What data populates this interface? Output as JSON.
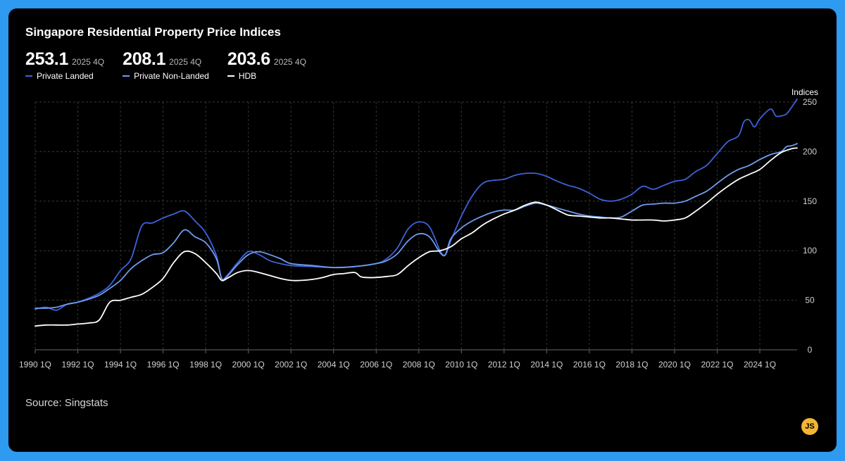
{
  "title": "Singapore Residential Property Price Indices",
  "source": "Source: Singstats",
  "badge_label": "JS",
  "stats": [
    {
      "value": "253.1",
      "period": "2025 4Q",
      "label": "Private Landed",
      "color": "#3d62db"
    },
    {
      "value": "208.1",
      "period": "2025 4Q",
      "label": "Private Non-Landed",
      "color": "#6f9cf2"
    },
    {
      "value": "203.6",
      "period": "2025 4Q",
      "label": "HDB",
      "color": "#ffffff"
    }
  ],
  "chart_data": {
    "type": "line",
    "title": "Singapore Residential Property Price Indices",
    "xlabel": "",
    "ylabel": "Indices",
    "ylim": [
      0,
      250
    ],
    "xlim": [
      1990.0,
      2025.75
    ],
    "yticks": [
      0,
      50,
      100,
      150,
      200,
      250
    ],
    "xtick_labels": [
      "1990 1Q",
      "1992 1Q",
      "1994 1Q",
      "1996 1Q",
      "1998 1Q",
      "2000 1Q",
      "2002 1Q",
      "2004 1Q",
      "2006 1Q",
      "2008 1Q",
      "2010 1Q",
      "2012 1Q",
      "2014 1Q",
      "2016 1Q",
      "2018 1Q",
      "2020 1Q",
      "2022 1Q",
      "2024 1Q"
    ],
    "xtick_years": [
      1990,
      1992,
      1994,
      1996,
      1998,
      2000,
      2002,
      2004,
      2006,
      2008,
      2010,
      2012,
      2014,
      2016,
      2018,
      2020,
      2022,
      2024
    ],
    "grid": true,
    "y_axis_position": "right",
    "series": [
      {
        "name": "Private Landed",
        "color": "#3d62db",
        "points": [
          [
            1990.0,
            41
          ],
          [
            1990.5,
            43
          ],
          [
            1991.0,
            40
          ],
          [
            1991.5,
            46
          ],
          [
            1992.0,
            48
          ],
          [
            1992.5,
            52
          ],
          [
            1993.0,
            57
          ],
          [
            1993.5,
            65
          ],
          [
            1994.0,
            80
          ],
          [
            1994.5,
            92
          ],
          [
            1995.0,
            125
          ],
          [
            1995.5,
            128
          ],
          [
            1996.0,
            133
          ],
          [
            1996.5,
            137
          ],
          [
            1997.0,
            140
          ],
          [
            1997.5,
            130
          ],
          [
            1998.0,
            118
          ],
          [
            1998.5,
            95
          ],
          [
            1998.75,
            72
          ],
          [
            1999.0,
            75
          ],
          [
            1999.5,
            88
          ],
          [
            2000.0,
            99
          ],
          [
            2000.5,
            96
          ],
          [
            2001.0,
            90
          ],
          [
            2001.5,
            87
          ],
          [
            2002.0,
            85
          ],
          [
            2003.0,
            84
          ],
          [
            2004.0,
            83
          ],
          [
            2005.0,
            84
          ],
          [
            2006.0,
            87
          ],
          [
            2006.5,
            92
          ],
          [
            2007.0,
            103
          ],
          [
            2007.5,
            122
          ],
          [
            2008.0,
            129
          ],
          [
            2008.5,
            124
          ],
          [
            2009.0,
            100
          ],
          [
            2009.25,
            96
          ],
          [
            2009.5,
            110
          ],
          [
            2010.0,
            135
          ],
          [
            2010.5,
            155
          ],
          [
            2011.0,
            168
          ],
          [
            2011.5,
            171
          ],
          [
            2012.0,
            172
          ],
          [
            2012.5,
            176
          ],
          [
            2013.0,
            178
          ],
          [
            2013.5,
            178
          ],
          [
            2014.0,
            175
          ],
          [
            2014.5,
            170
          ],
          [
            2015.0,
            166
          ],
          [
            2015.5,
            163
          ],
          [
            2016.0,
            158
          ],
          [
            2016.5,
            152
          ],
          [
            2017.0,
            150
          ],
          [
            2017.5,
            152
          ],
          [
            2018.0,
            157
          ],
          [
            2018.5,
            165
          ],
          [
            2019.0,
            162
          ],
          [
            2019.5,
            166
          ],
          [
            2020.0,
            170
          ],
          [
            2020.5,
            172
          ],
          [
            2021.0,
            180
          ],
          [
            2021.5,
            186
          ],
          [
            2022.0,
            198
          ],
          [
            2022.5,
            210
          ],
          [
            2023.0,
            216
          ],
          [
            2023.25,
            230
          ],
          [
            2023.5,
            232
          ],
          [
            2023.75,
            225
          ],
          [
            2024.0,
            233
          ],
          [
            2024.5,
            243
          ],
          [
            2024.75,
            236
          ],
          [
            2025.0,
            236
          ],
          [
            2025.25,
            238
          ],
          [
            2025.5,
            245
          ],
          [
            2025.75,
            253
          ]
        ]
      },
      {
        "name": "Private Non-Landed",
        "color": "#6f9cf2",
        "points": [
          [
            1990.0,
            42
          ],
          [
            1990.5,
            42
          ],
          [
            1991.0,
            43
          ],
          [
            1991.5,
            46
          ],
          [
            1992.0,
            48
          ],
          [
            1992.5,
            51
          ],
          [
            1993.0,
            55
          ],
          [
            1993.5,
            62
          ],
          [
            1994.0,
            70
          ],
          [
            1994.5,
            82
          ],
          [
            1995.0,
            90
          ],
          [
            1995.5,
            96
          ],
          [
            1996.0,
            98
          ],
          [
            1996.5,
            108
          ],
          [
            1997.0,
            121
          ],
          [
            1997.5,
            114
          ],
          [
            1998.0,
            108
          ],
          [
            1998.5,
            92
          ],
          [
            1998.75,
            72
          ],
          [
            1999.0,
            74
          ],
          [
            1999.5,
            86
          ],
          [
            2000.0,
            96
          ],
          [
            2000.5,
            99
          ],
          [
            2001.0,
            96
          ],
          [
            2001.5,
            92
          ],
          [
            2002.0,
            87
          ],
          [
            2003.0,
            85
          ],
          [
            2004.0,
            83
          ],
          [
            2005.0,
            84
          ],
          [
            2006.0,
            87
          ],
          [
            2006.5,
            90
          ],
          [
            2007.0,
            97
          ],
          [
            2007.5,
            110
          ],
          [
            2008.0,
            117
          ],
          [
            2008.5,
            114
          ],
          [
            2009.0,
            98
          ],
          [
            2009.25,
            96
          ],
          [
            2009.5,
            112
          ],
          [
            2010.0,
            123
          ],
          [
            2010.5,
            130
          ],
          [
            2011.0,
            135
          ],
          [
            2011.5,
            139
          ],
          [
            2012.0,
            141
          ],
          [
            2012.5,
            141
          ],
          [
            2013.0,
            145
          ],
          [
            2013.5,
            148
          ],
          [
            2014.0,
            146
          ],
          [
            2014.5,
            143
          ],
          [
            2015.0,
            140
          ],
          [
            2015.5,
            137
          ],
          [
            2016.0,
            135
          ],
          [
            2016.5,
            134
          ],
          [
            2017.0,
            133
          ],
          [
            2017.5,
            134
          ],
          [
            2018.0,
            140
          ],
          [
            2018.5,
            146
          ],
          [
            2019.0,
            147
          ],
          [
            2019.5,
            148
          ],
          [
            2020.0,
            148
          ],
          [
            2020.5,
            150
          ],
          [
            2021.0,
            155
          ],
          [
            2021.5,
            160
          ],
          [
            2022.0,
            168
          ],
          [
            2022.5,
            176
          ],
          [
            2023.0,
            182
          ],
          [
            2023.5,
            186
          ],
          [
            2024.0,
            192
          ],
          [
            2024.5,
            197
          ],
          [
            2025.0,
            200
          ],
          [
            2025.25,
            205
          ],
          [
            2025.5,
            206
          ],
          [
            2025.75,
            208
          ]
        ]
      },
      {
        "name": "HDB",
        "color": "#ffffff",
        "points": [
          [
            1990.0,
            24
          ],
          [
            1990.5,
            25
          ],
          [
            1991.0,
            25
          ],
          [
            1991.5,
            25
          ],
          [
            1992.0,
            26
          ],
          [
            1992.5,
            27
          ],
          [
            1993.0,
            30
          ],
          [
            1993.5,
            48
          ],
          [
            1994.0,
            50
          ],
          [
            1994.5,
            53
          ],
          [
            1995.0,
            56
          ],
          [
            1995.5,
            63
          ],
          [
            1996.0,
            72
          ],
          [
            1996.5,
            88
          ],
          [
            1997.0,
            99
          ],
          [
            1997.5,
            97
          ],
          [
            1998.0,
            88
          ],
          [
            1998.5,
            77
          ],
          [
            1998.75,
            70
          ],
          [
            1999.0,
            72
          ],
          [
            1999.5,
            78
          ],
          [
            2000.0,
            80
          ],
          [
            2000.5,
            78
          ],
          [
            2001.0,
            75
          ],
          [
            2001.5,
            72
          ],
          [
            2002.0,
            70
          ],
          [
            2002.5,
            70
          ],
          [
            2003.0,
            71
          ],
          [
            2003.5,
            73
          ],
          [
            2004.0,
            76
          ],
          [
            2004.5,
            77
          ],
          [
            2005.0,
            78
          ],
          [
            2005.25,
            74
          ],
          [
            2005.5,
            73
          ],
          [
            2006.0,
            73
          ],
          [
            2006.5,
            74
          ],
          [
            2007.0,
            76
          ],
          [
            2007.5,
            85
          ],
          [
            2008.0,
            93
          ],
          [
            2008.5,
            99
          ],
          [
            2009.0,
            100
          ],
          [
            2009.5,
            104
          ],
          [
            2010.0,
            112
          ],
          [
            2010.5,
            118
          ],
          [
            2011.0,
            126
          ],
          [
            2011.5,
            132
          ],
          [
            2012.0,
            137
          ],
          [
            2012.5,
            141
          ],
          [
            2013.0,
            146
          ],
          [
            2013.5,
            149
          ],
          [
            2014.0,
            146
          ],
          [
            2014.5,
            141
          ],
          [
            2015.0,
            136
          ],
          [
            2015.5,
            135
          ],
          [
            2016.0,
            134
          ],
          [
            2016.5,
            133
          ],
          [
            2017.0,
            133
          ],
          [
            2017.5,
            132
          ],
          [
            2018.0,
            131
          ],
          [
            2018.5,
            131
          ],
          [
            2019.0,
            131
          ],
          [
            2019.5,
            130
          ],
          [
            2020.0,
            131
          ],
          [
            2020.5,
            133
          ],
          [
            2021.0,
            140
          ],
          [
            2021.5,
            148
          ],
          [
            2022.0,
            157
          ],
          [
            2022.5,
            165
          ],
          [
            2023.0,
            172
          ],
          [
            2023.5,
            177
          ],
          [
            2024.0,
            182
          ],
          [
            2024.5,
            191
          ],
          [
            2025.0,
            199
          ],
          [
            2025.5,
            203
          ],
          [
            2025.75,
            203.6
          ]
        ]
      }
    ]
  }
}
